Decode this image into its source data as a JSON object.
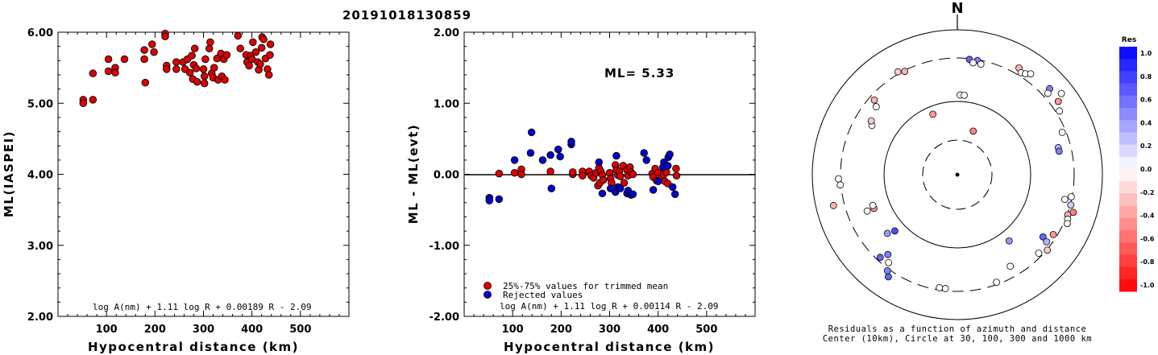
{
  "figure": {
    "title": "20191018130859",
    "background": "#ffffff"
  },
  "chart_data": [
    {
      "type": "scatter",
      "panel": "left",
      "xlabel": "Hypocentral distance (km)",
      "ylabel": "ML(IASPEI)",
      "xlim": [
        0,
        600
      ],
      "ylim": [
        2.0,
        6.0
      ],
      "xticks": [
        "100",
        "200",
        "300",
        "400",
        "500"
      ],
      "yticks": [
        "2.00",
        "3.00",
        "4.00",
        "5.00",
        "6.00"
      ],
      "formula": "log A(nm) + 1.11 log R + 0.00189 R - 2.09",
      "marker_color": "#dd0000",
      "points": [
        [
          52,
          5.05
        ],
        [
          52,
          5.0
        ],
        [
          72,
          5.05
        ],
        [
          72,
          5.42
        ],
        [
          104,
          5.62
        ],
        [
          104,
          5.45
        ],
        [
          118,
          5.5
        ],
        [
          118,
          5.43
        ],
        [
          137,
          5.62
        ],
        [
          178,
          5.75
        ],
        [
          178,
          5.62
        ],
        [
          180,
          5.29
        ],
        [
          194,
          5.83
        ],
        [
          198,
          5.72
        ],
        [
          221,
          5.98
        ],
        [
          221,
          5.94
        ],
        [
          224,
          5.53
        ],
        [
          224,
          5.48
        ],
        [
          244,
          5.58
        ],
        [
          244,
          5.48
        ],
        [
          258,
          5.58
        ],
        [
          262,
          5.48
        ],
        [
          267,
          5.62
        ],
        [
          272,
          5.43
        ],
        [
          276,
          5.67
        ],
        [
          278,
          5.34
        ],
        [
          280,
          5.54
        ],
        [
          282,
          5.77
        ],
        [
          285,
          5.49
        ],
        [
          287,
          5.3
        ],
        [
          300,
          5.48
        ],
        [
          302,
          5.28
        ],
        [
          302,
          5.38
        ],
        [
          304,
          5.62
        ],
        [
          312,
          5.77
        ],
        [
          314,
          5.86
        ],
        [
          317,
          5.42
        ],
        [
          320,
          5.36
        ],
        [
          322,
          5.5
        ],
        [
          328,
          5.63
        ],
        [
          330,
          5.33
        ],
        [
          336,
          5.7
        ],
        [
          338,
          5.38
        ],
        [
          342,
          5.62
        ],
        [
          344,
          5.33
        ],
        [
          348,
          5.68
        ],
        [
          371,
          5.95
        ],
        [
          376,
          5.77
        ],
        [
          388,
          5.68
        ],
        [
          390,
          5.58
        ],
        [
          394,
          5.53
        ],
        [
          397,
          5.67
        ],
        [
          400,
          5.62
        ],
        [
          402,
          5.86
        ],
        [
          408,
          5.72
        ],
        [
          412,
          5.58
        ],
        [
          414,
          5.47
        ],
        [
          417,
          5.55
        ],
        [
          420,
          5.78
        ],
        [
          421,
          5.93
        ],
        [
          424,
          5.9
        ],
        [
          428,
          5.63
        ],
        [
          432,
          5.48
        ],
        [
          435,
          5.4
        ],
        [
          437,
          5.68
        ],
        [
          438,
          5.83
        ]
      ]
    },
    {
      "type": "scatter",
      "panel": "middle",
      "xlabel": "Hypocentral distance (km)",
      "ylabel": "ML - ML(evt)",
      "xlim": [
        0,
        600
      ],
      "ylim": [
        -2.0,
        2.0
      ],
      "xticks": [
        "100",
        "200",
        "300",
        "400",
        "500"
      ],
      "yticks": [
        "-2.00",
        "-1.00",
        "0.00",
        "1.00",
        "2.00"
      ],
      "annotation": "ML= 5.33",
      "formula": "log A(nm) + 1.11 log R + 0.00114 R - 2.09",
      "legend": [
        "25%-75% values for trimmed mean",
        "Rejected values"
      ],
      "series": [
        {
          "name": "25%-75% values for trimmed mean",
          "color": "#dd0000",
          "points": [
            [
              72,
              0.01
            ],
            [
              104,
              0.02
            ],
            [
              118,
              0.07
            ],
            [
              118,
              0.0
            ],
            [
              178,
              0.04
            ],
            [
              224,
              0.0
            ],
            [
              224,
              0.03
            ],
            [
              244,
              0.04
            ],
            [
              244,
              -0.02
            ],
            [
              258,
              0.04
            ],
            [
              262,
              -0.02
            ],
            [
              267,
              -0.05
            ],
            [
              272,
              0.02
            ],
            [
              276,
              -0.16
            ],
            [
              278,
              0.09
            ],
            [
              280,
              -0.12
            ],
            [
              282,
              0.04
            ],
            [
              285,
              -0.01
            ],
            [
              287,
              -0.08
            ],
            [
              300,
              0.02
            ],
            [
              302,
              -0.06
            ],
            [
              304,
              -0.12
            ],
            [
              312,
              0.13
            ],
            [
              314,
              0.06
            ],
            [
              317,
              -0.01
            ],
            [
              320,
              0.04
            ],
            [
              322,
              -0.03
            ],
            [
              328,
              0.12
            ],
            [
              330,
              -0.12
            ],
            [
              336,
              0.06
            ],
            [
              338,
              -0.02
            ],
            [
              342,
              0.1
            ],
            [
              344,
              0.03
            ],
            [
              348,
              0.0
            ],
            [
              388,
              0.01
            ],
            [
              390,
              -0.04
            ],
            [
              394,
              0.08
            ],
            [
              397,
              -0.09
            ],
            [
              400,
              0.02
            ],
            [
              408,
              -0.04
            ],
            [
              412,
              0.0
            ],
            [
              414,
              -0.1
            ],
            [
              417,
              0.03
            ],
            [
              420,
              -0.13
            ],
            [
              437,
              0.08
            ],
            [
              438,
              -0.02
            ]
          ]
        },
        {
          "name": "Rejected values",
          "color": "#0000cc",
          "points": [
            [
              52,
              -0.33
            ],
            [
              52,
              -0.37
            ],
            [
              72,
              -0.35
            ],
            [
              104,
              0.2
            ],
            [
              137,
              0.3
            ],
            [
              139,
              0.59
            ],
            [
              162,
              0.2
            ],
            [
              178,
              0.27
            ],
            [
              180,
              -0.2
            ],
            [
              194,
              0.35
            ],
            [
              198,
              0.25
            ],
            [
              221,
              0.42
            ],
            [
              221,
              0.46
            ],
            [
              278,
              0.17
            ],
            [
              285,
              -0.27
            ],
            [
              302,
              -0.2
            ],
            [
              312,
              -0.25
            ],
            [
              314,
              0.26
            ],
            [
              317,
              -0.18
            ],
            [
              322,
              -0.2
            ],
            [
              336,
              -0.27
            ],
            [
              338,
              -0.23
            ],
            [
              344,
              -0.29
            ],
            [
              348,
              -0.28
            ],
            [
              371,
              0.3
            ],
            [
              376,
              0.2
            ],
            [
              390,
              -0.22
            ],
            [
              400,
              -0.1
            ],
            [
              410,
              0.1
            ],
            [
              412,
              0.17
            ],
            [
              420,
              0.12
            ],
            [
              421,
              0.24
            ],
            [
              424,
              0.28
            ],
            [
              430,
              -0.18
            ],
            [
              435,
              -0.28
            ]
          ]
        }
      ]
    },
    {
      "type": "scatter",
      "panel": "polar",
      "north_label": "N",
      "caption_line1": "Residuals as a function of azimuth and distance",
      "caption_line2": "Center (10km), Circle at 30, 100, 300 and 1000 km",
      "colorbar": {
        "title": "Res",
        "ticks": [
          "1.0",
          "0.8",
          "0.6",
          "0.4",
          "0.2",
          "0.0",
          "-0.2",
          "-0.4",
          "-0.6",
          "-0.8",
          "-1.0"
        ],
        "positive_color": "#0000ff",
        "negative_color": "#ff0000"
      },
      "points_az_dist_res": [
        [
          6,
          0.8,
          0.6
        ],
        [
          10,
          0.8,
          0.5
        ],
        [
          8,
          0.78,
          0.0
        ],
        [
          12,
          0.78,
          0.0
        ],
        [
          2,
          0.55,
          0.0
        ],
        [
          5,
          0.55,
          0.0
        ],
        [
          330,
          0.82,
          -0.2
        ],
        [
          333,
          0.8,
          -0.3
        ],
        [
          338,
          0.45,
          -0.4
        ],
        [
          310,
          0.73,
          0.0
        ],
        [
          312,
          0.77,
          -0.3
        ],
        [
          30,
          0.85,
          -0.3
        ],
        [
          32,
          0.83,
          0.0
        ],
        [
          34,
          0.84,
          0.0
        ],
        [
          36,
          0.86,
          0.0
        ],
        [
          47,
          0.87,
          0.5
        ],
        [
          48,
          0.84,
          0.0
        ],
        [
          52,
          0.91,
          0.0
        ],
        [
          54,
          0.86,
          -0.4
        ],
        [
          58,
          0.83,
          0.0
        ],
        [
          68,
          0.78,
          0.0
        ],
        [
          75,
          0.72,
          0.3
        ],
        [
          77,
          0.72,
          0.5
        ],
        [
          101,
          0.8,
          0.0
        ],
        [
          103,
          0.76,
          0.0
        ],
        [
          105,
          0.81,
          0.2
        ],
        [
          108,
          0.84,
          -0.5
        ],
        [
          110,
          0.81,
          -0.3
        ],
        [
          112,
          0.82,
          0.0
        ],
        [
          114,
          0.83,
          0.0
        ],
        [
          122,
          0.78,
          -0.4
        ],
        [
          126,
          0.73,
          0.6
        ],
        [
          127,
          0.77,
          0.3
        ],
        [
          130,
          0.81,
          -0.2
        ],
        [
          134,
          0.78,
          0.0
        ],
        [
          142,
          0.58,
          0.4
        ],
        [
          150,
          0.73,
          0.0
        ],
        [
          160,
          0.79,
          0.0
        ],
        [
          186,
          0.79,
          0.0
        ],
        [
          189,
          0.79,
          0.0
        ],
        [
          214,
          0.85,
          0.6
        ],
        [
          216,
          0.82,
          0.5
        ],
        [
          218,
          0.77,
          0.0
        ],
        [
          221,
          0.73,
          0.5
        ],
        [
          223,
          0.78,
          0.6
        ],
        [
          228,
          0.58,
          0.7
        ],
        [
          230,
          0.63,
          0.4
        ],
        [
          248,
          0.62,
          -0.4
        ],
        [
          248,
          0.67,
          0.0
        ],
        [
          250,
          0.62,
          0.0
        ],
        [
          256,
          0.88,
          -0.3
        ],
        [
          265,
          0.81,
          0.0
        ],
        [
          268,
          0.82,
          0.0
        ],
        [
          300,
          0.68,
          0.0
        ],
        [
          302,
          0.7,
          -0.2
        ],
        [
          20,
          0.32,
          -0.5
        ]
      ]
    }
  ]
}
